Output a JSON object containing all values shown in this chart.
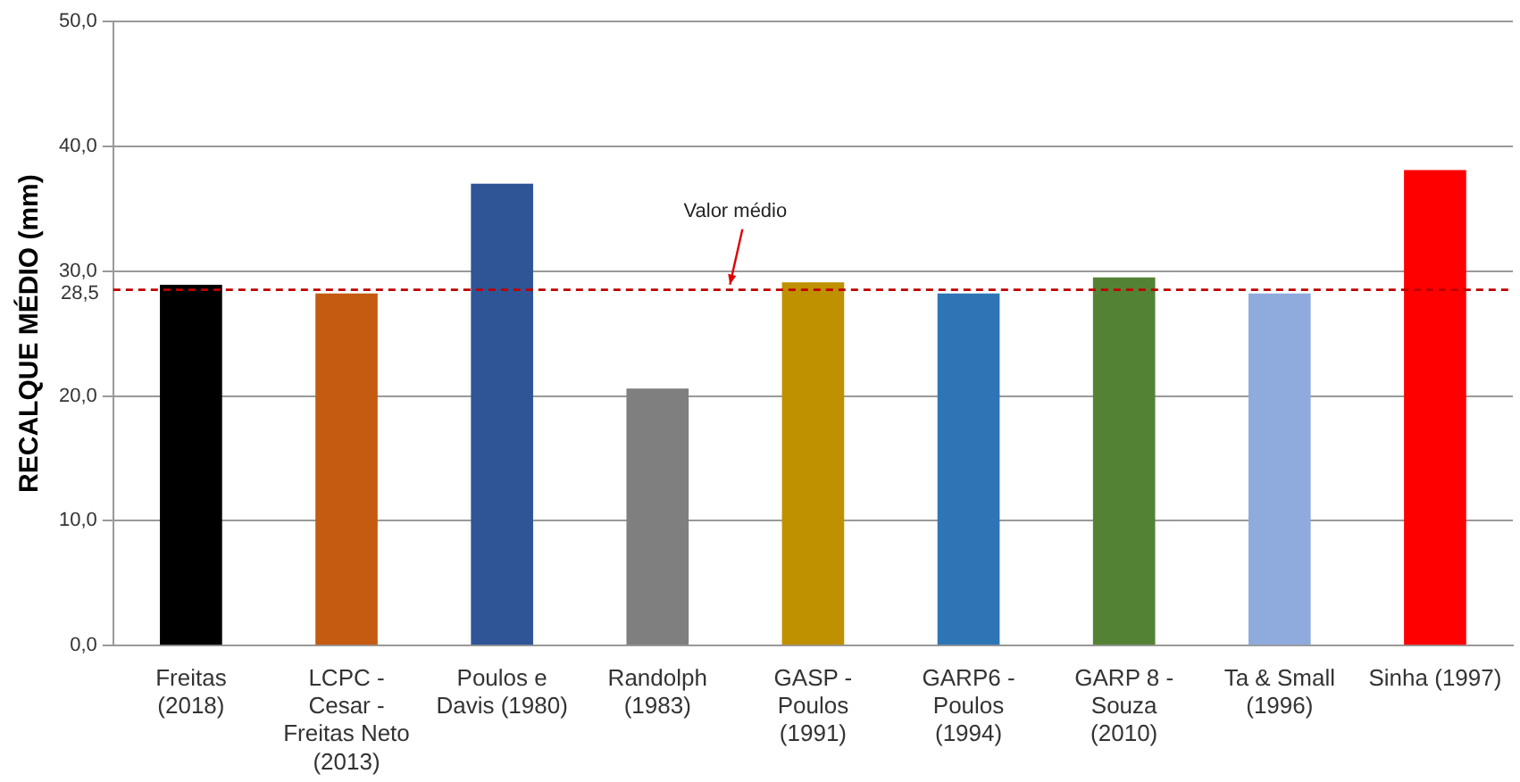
{
  "chart_data": {
    "type": "bar",
    "ylabel": "RECALQUE MÉDIO (mm)",
    "categories": [
      "Freitas (2018)",
      "LCPC - Cesar - Freitas Neto (2013)",
      "Poulos e Davis (1980)",
      "Randolph (1983)",
      "GASP - Poulos (1991)",
      "GARP6 - Poulos (1994)",
      "GARP 8 - Souza (2010)",
      "Ta & Small (1996)",
      "Sinha (1997)"
    ],
    "values": [
      28.9,
      28.2,
      37.0,
      20.6,
      29.1,
      28.2,
      29.5,
      28.2,
      38.1
    ],
    "colors": [
      "#000000",
      "#c55a11",
      "#2f5597",
      "#7f7f7f",
      "#bf9000",
      "#2e75b6",
      "#548235",
      "#8faadc",
      "#ff0000"
    ],
    "ylim": [
      0,
      50
    ],
    "yticks": [
      {
        "value": 0,
        "label": "0,0"
      },
      {
        "value": 10,
        "label": "10,0"
      },
      {
        "value": 20,
        "label": "20,0"
      },
      {
        "value": 30,
        "label": "30,0"
      },
      {
        "value": 40,
        "label": "40,0"
      },
      {
        "value": 50,
        "label": "50,0"
      }
    ],
    "ref_lines": [
      {
        "axis": "y",
        "value": 28.5,
        "label": "28,5",
        "color": "#c00000",
        "line_style": "dashed"
      }
    ],
    "annotations": [
      {
        "text": "Valor médio",
        "y": 28.5
      }
    ],
    "grid": "y"
  }
}
